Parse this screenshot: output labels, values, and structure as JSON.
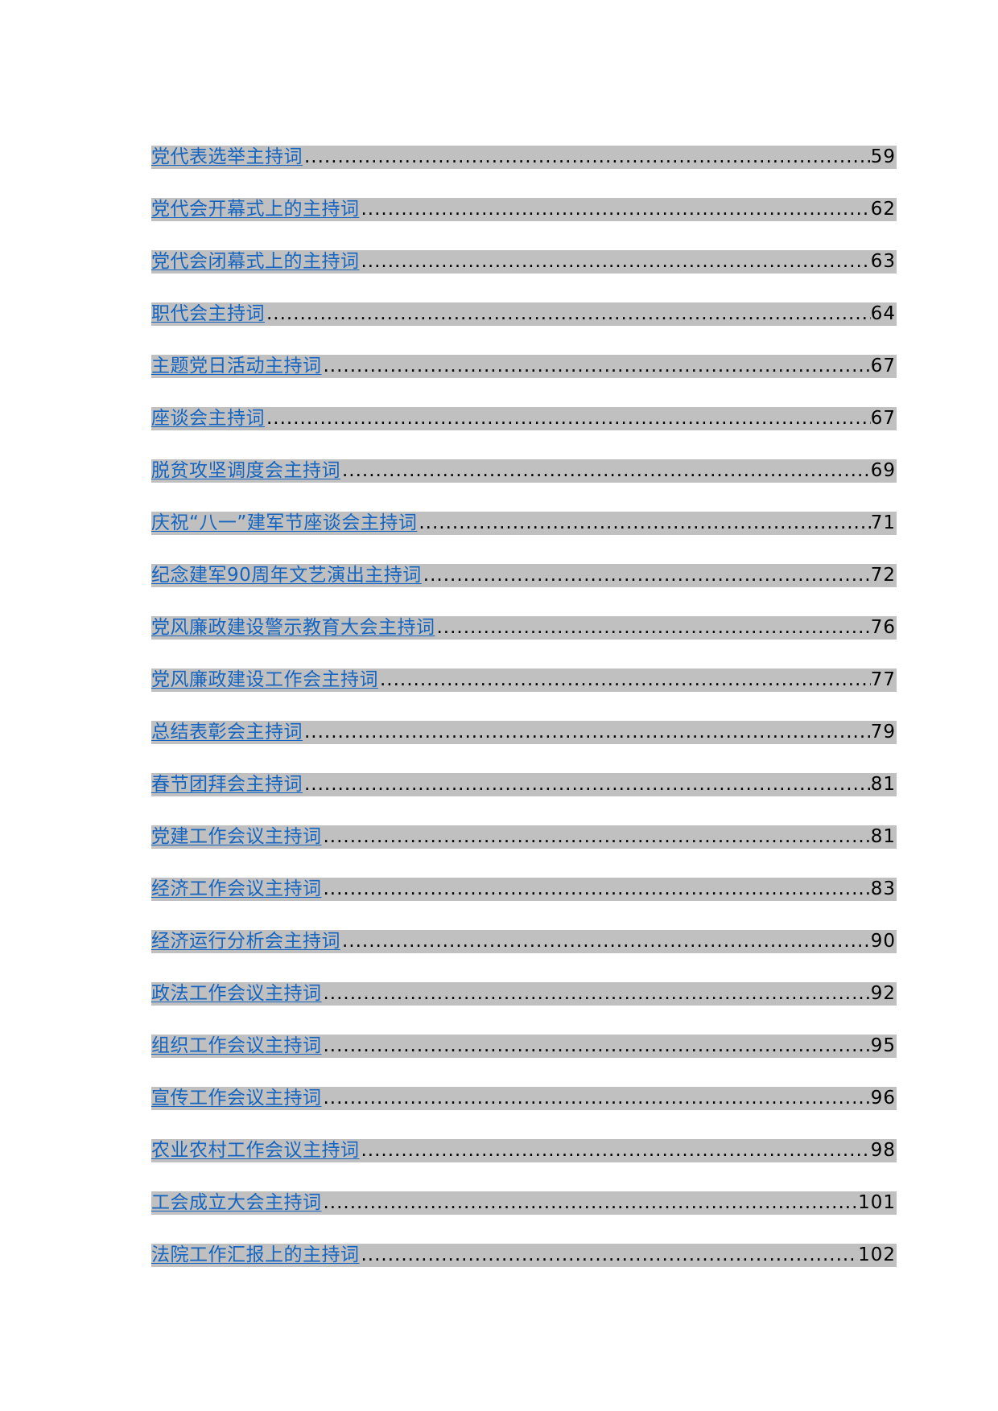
{
  "toc": {
    "entries": [
      {
        "title": "党代表选举主持词",
        "page": "59"
      },
      {
        "title": "党代会开幕式上的主持词",
        "page": "62"
      },
      {
        "title": "党代会闭幕式上的主持词",
        "page": "63"
      },
      {
        "title": "职代会主持词",
        "page": "64"
      },
      {
        "title": "主题党日活动主持词",
        "page": "67"
      },
      {
        "title": "座谈会主持词",
        "page": "67"
      },
      {
        "title": "脱贫攻坚调度会主持词",
        "page": "69"
      },
      {
        "title": "庆祝“八一”建军节座谈会主持词",
        "page": "71"
      },
      {
        "title": "纪念建军90周年文艺演出主持词",
        "page": "72"
      },
      {
        "title": "党风廉政建设警示教育大会主持词",
        "page": "76"
      },
      {
        "title": "党风廉政建设工作会主持词",
        "page": "77"
      },
      {
        "title": "总结表彰会主持词",
        "page": "79"
      },
      {
        "title": "春节团拜会主持词",
        "page": "81"
      },
      {
        "title": "党建工作会议主持词",
        "page": "81"
      },
      {
        "title": "经济工作会议主持词",
        "page": "83"
      },
      {
        "title": "经济运行分析会主持词",
        "page": "90"
      },
      {
        "title": "政法工作会议主持词",
        "page": "92"
      },
      {
        "title": "组织工作会议主持词",
        "page": "95"
      },
      {
        "title": "宣传工作会议主持词",
        "page": "96"
      },
      {
        "title": "农业农村工作会议主持词",
        "page": "98"
      },
      {
        "title": "工会成立大会主持词",
        "page": "101"
      },
      {
        "title": "法院工作汇报上的主持词",
        "page": "102"
      }
    ]
  }
}
